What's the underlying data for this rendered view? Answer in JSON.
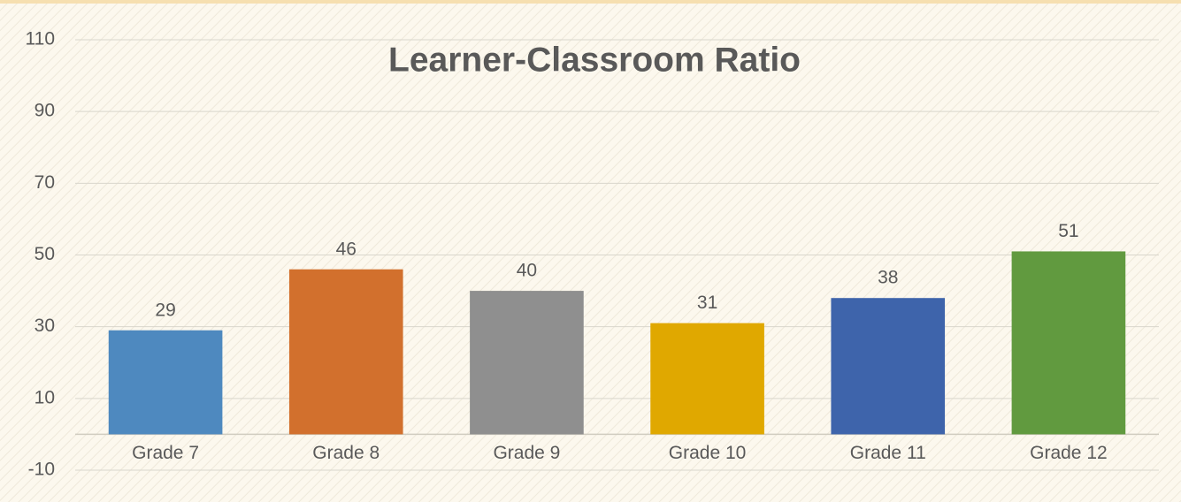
{
  "chart_data": {
    "type": "bar",
    "title": "Learner-Classroom Ratio",
    "categories": [
      "Grade 7",
      "Grade 8",
      "Grade 9",
      "Grade 10",
      "Grade 11",
      "Grade 12"
    ],
    "values": [
      29,
      46,
      40,
      31,
      38,
      51
    ],
    "colors": [
      "#4e89bf",
      "#d2702d",
      "#8f8f8f",
      "#e0a800",
      "#3e64ab",
      "#619a3f"
    ],
    "ylim": [
      -10,
      110
    ],
    "yticks": [
      -10,
      10,
      30,
      50,
      70,
      90,
      110
    ],
    "grid": true,
    "data_labels": true
  }
}
